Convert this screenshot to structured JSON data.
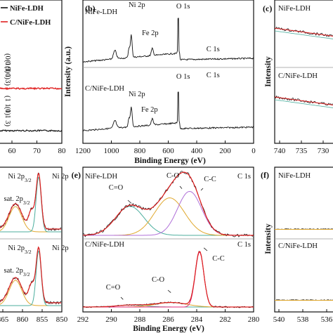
{
  "chart_data": [
    {
      "id": "a",
      "type": "line",
      "panel_letter": "",
      "legend": [
        {
          "name": "NiFe-LDH",
          "color": "#111111"
        },
        {
          "name": "C/NiFe-LDH",
          "color": "#e02020"
        }
      ],
      "xticks": [
        "60",
        "70",
        "80"
      ],
      "peak_labels_top": [
        "(0 0 9)",
        "(1 1 0)",
        "(1 1 3)"
      ],
      "peak_labels_bottom": [
        "(1 1 0)",
        "(1 1 3)"
      ]
    },
    {
      "id": "b",
      "type": "line",
      "panel_letter": "(b)",
      "xlabel": "Binding Energy (eV)",
      "ylabel": "Intensity (a.u.)",
      "xlim": [
        1200,
        0
      ],
      "xticks": [
        "1200",
        "1000",
        "800",
        "600",
        "400",
        "200",
        "0"
      ],
      "series": [
        {
          "name": "NiFe-LDH",
          "peaks": [
            {
              "label": "Ni 2p",
              "x": 860
            },
            {
              "label": "Fe 2p",
              "x": 712
            },
            {
              "label": "O 1s",
              "x": 530
            },
            {
              "label": "C 1s",
              "x": 285
            }
          ]
        },
        {
          "name": "C/NiFe-LDH",
          "peaks": [
            {
              "label": "Ni 2p",
              "x": 860
            },
            {
              "label": "Fe 2p",
              "x": 712
            },
            {
              "label": "O 1s",
              "x": 530
            },
            {
              "label": "C 1s",
              "x": 285
            }
          ]
        }
      ]
    },
    {
      "id": "c",
      "type": "line",
      "panel_letter": "(c)",
      "ylabel": "Intensity",
      "xticks": [
        "740",
        "735",
        "730"
      ],
      "series": [
        {
          "name": "NiFe-LDH"
        },
        {
          "name": "C/NiFe-LDH"
        }
      ]
    },
    {
      "id": "d",
      "type": "line",
      "panel_letter": "",
      "xticks": [
        "865",
        "860",
        "855",
        "850"
      ],
      "labels": [
        "Ni 2p3/2",
        "Ni 2p",
        "sat. 2p3/2"
      ],
      "series": [
        {
          "name": "NiFe-LDH"
        },
        {
          "name": "C/NiFe-LDH"
        }
      ]
    },
    {
      "id": "e",
      "type": "line",
      "panel_letter": "(e)",
      "xlabel": "Binding Energy (eV)",
      "xlim": [
        292,
        280
      ],
      "xticks": [
        "292",
        "290",
        "288",
        "286",
        "284",
        "282",
        "280"
      ],
      "series": [
        {
          "name": "NiFe-LDH",
          "title": "C 1s",
          "components": [
            {
              "label": "C=O",
              "center": 288.7,
              "height": 0.45,
              "width": 1.0,
              "color": "#4cae9e"
            },
            {
              "label": "C-O",
              "center": 285.9,
              "height": 0.58,
              "width": 1.05,
              "color": "#e0a82e"
            },
            {
              "label": "C-C",
              "center": 284.5,
              "height": 0.68,
              "width": 0.85,
              "color": "#b070d8"
            }
          ]
        },
        {
          "name": "C/NiFe-LDH",
          "title": "C 1s",
          "components": [
            {
              "label": "C=O",
              "center": 288.6,
              "height": 0.03,
              "width": 1.0,
              "color": "#4cae9e"
            },
            {
              "label": "C-O",
              "center": 285.8,
              "height": 0.07,
              "width": 1.1,
              "color": "#e0a82e"
            },
            {
              "label": "C-C",
              "center": 283.8,
              "height": 0.85,
              "width": 0.3,
              "color": "#e02a7a"
            }
          ]
        }
      ]
    },
    {
      "id": "f",
      "type": "line",
      "panel_letter": "(f)",
      "ylabel": "Intensity",
      "xticks": [
        "540",
        "538",
        "536"
      ],
      "series": [
        {
          "name": "NiFe-LDH"
        },
        {
          "name": "C/NiFe-LDH"
        }
      ]
    }
  ]
}
